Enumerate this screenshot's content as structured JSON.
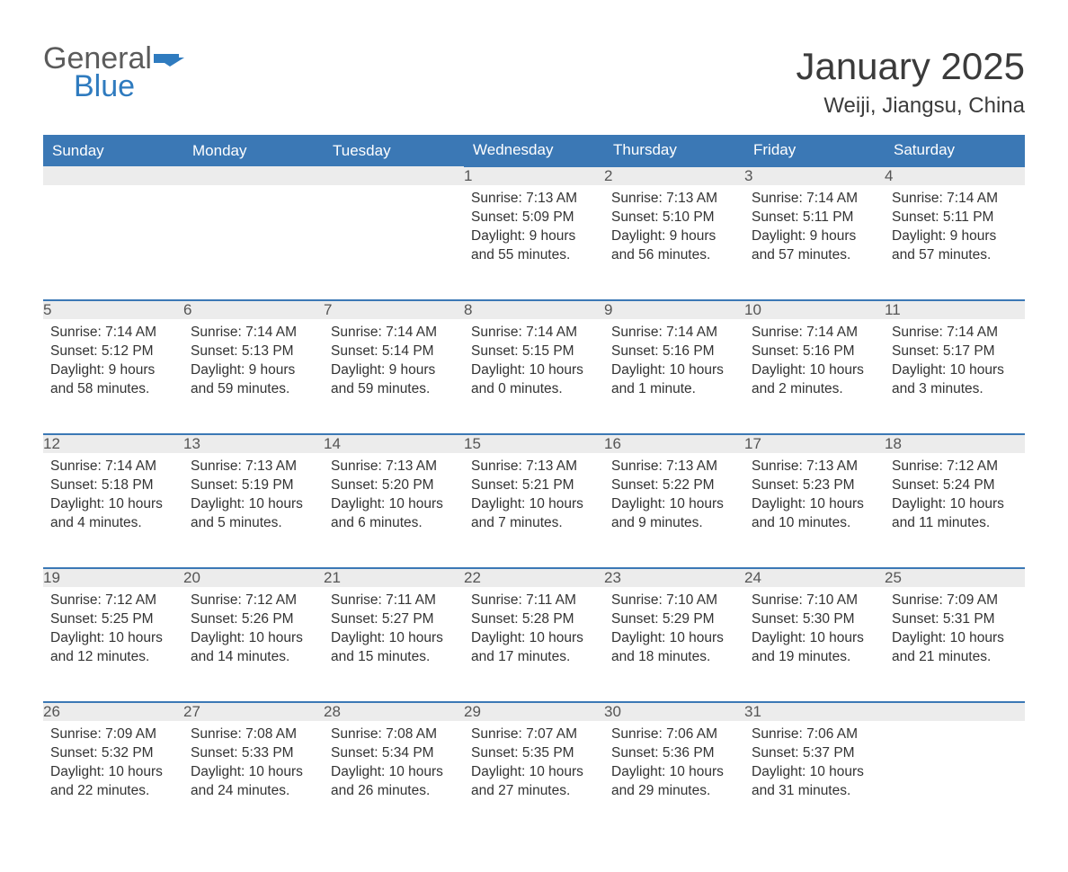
{
  "brand": {
    "line1": "General",
    "line2": "Blue",
    "color_general": "#5b5b5b",
    "color_blue": "#2f7bbf",
    "shape_color": "#2f7bbf"
  },
  "title": "January 2025",
  "location": "Weiji, Jiangsu, China",
  "colors": {
    "header_bg": "#3b78b5",
    "header_text": "#ffffff",
    "daynum_bg": "#ececec",
    "daynum_border": "#3b78b5",
    "body_text": "#333333",
    "page_bg": "#ffffff"
  },
  "typography": {
    "month_title_fontsize": 42,
    "location_fontsize": 24,
    "header_fontsize": 17,
    "daynum_fontsize": 17,
    "body_fontsize": 15.5
  },
  "weekdays": [
    "Sunday",
    "Monday",
    "Tuesday",
    "Wednesday",
    "Thursday",
    "Friday",
    "Saturday"
  ],
  "weeks": [
    [
      null,
      null,
      null,
      {
        "n": "1",
        "sr": "7:13 AM",
        "ss": "5:09 PM",
        "dl": "9 hours and 55 minutes."
      },
      {
        "n": "2",
        "sr": "7:13 AM",
        "ss": "5:10 PM",
        "dl": "9 hours and 56 minutes."
      },
      {
        "n": "3",
        "sr": "7:14 AM",
        "ss": "5:11 PM",
        "dl": "9 hours and 57 minutes."
      },
      {
        "n": "4",
        "sr": "7:14 AM",
        "ss": "5:11 PM",
        "dl": "9 hours and 57 minutes."
      }
    ],
    [
      {
        "n": "5",
        "sr": "7:14 AM",
        "ss": "5:12 PM",
        "dl": "9 hours and 58 minutes."
      },
      {
        "n": "6",
        "sr": "7:14 AM",
        "ss": "5:13 PM",
        "dl": "9 hours and 59 minutes."
      },
      {
        "n": "7",
        "sr": "7:14 AM",
        "ss": "5:14 PM",
        "dl": "9 hours and 59 minutes."
      },
      {
        "n": "8",
        "sr": "7:14 AM",
        "ss": "5:15 PM",
        "dl": "10 hours and 0 minutes."
      },
      {
        "n": "9",
        "sr": "7:14 AM",
        "ss": "5:16 PM",
        "dl": "10 hours and 1 minute."
      },
      {
        "n": "10",
        "sr": "7:14 AM",
        "ss": "5:16 PM",
        "dl": "10 hours and 2 minutes."
      },
      {
        "n": "11",
        "sr": "7:14 AM",
        "ss": "5:17 PM",
        "dl": "10 hours and 3 minutes."
      }
    ],
    [
      {
        "n": "12",
        "sr": "7:14 AM",
        "ss": "5:18 PM",
        "dl": "10 hours and 4 minutes."
      },
      {
        "n": "13",
        "sr": "7:13 AM",
        "ss": "5:19 PM",
        "dl": "10 hours and 5 minutes."
      },
      {
        "n": "14",
        "sr": "7:13 AM",
        "ss": "5:20 PM",
        "dl": "10 hours and 6 minutes."
      },
      {
        "n": "15",
        "sr": "7:13 AM",
        "ss": "5:21 PM",
        "dl": "10 hours and 7 minutes."
      },
      {
        "n": "16",
        "sr": "7:13 AM",
        "ss": "5:22 PM",
        "dl": "10 hours and 9 minutes."
      },
      {
        "n": "17",
        "sr": "7:13 AM",
        "ss": "5:23 PM",
        "dl": "10 hours and 10 minutes."
      },
      {
        "n": "18",
        "sr": "7:12 AM",
        "ss": "5:24 PM",
        "dl": "10 hours and 11 minutes."
      }
    ],
    [
      {
        "n": "19",
        "sr": "7:12 AM",
        "ss": "5:25 PM",
        "dl": "10 hours and 12 minutes."
      },
      {
        "n": "20",
        "sr": "7:12 AM",
        "ss": "5:26 PM",
        "dl": "10 hours and 14 minutes."
      },
      {
        "n": "21",
        "sr": "7:11 AM",
        "ss": "5:27 PM",
        "dl": "10 hours and 15 minutes."
      },
      {
        "n": "22",
        "sr": "7:11 AM",
        "ss": "5:28 PM",
        "dl": "10 hours and 17 minutes."
      },
      {
        "n": "23",
        "sr": "7:10 AM",
        "ss": "5:29 PM",
        "dl": "10 hours and 18 minutes."
      },
      {
        "n": "24",
        "sr": "7:10 AM",
        "ss": "5:30 PM",
        "dl": "10 hours and 19 minutes."
      },
      {
        "n": "25",
        "sr": "7:09 AM",
        "ss": "5:31 PM",
        "dl": "10 hours and 21 minutes."
      }
    ],
    [
      {
        "n": "26",
        "sr": "7:09 AM",
        "ss": "5:32 PM",
        "dl": "10 hours and 22 minutes."
      },
      {
        "n": "27",
        "sr": "7:08 AM",
        "ss": "5:33 PM",
        "dl": "10 hours and 24 minutes."
      },
      {
        "n": "28",
        "sr": "7:08 AM",
        "ss": "5:34 PM",
        "dl": "10 hours and 26 minutes."
      },
      {
        "n": "29",
        "sr": "7:07 AM",
        "ss": "5:35 PM",
        "dl": "10 hours and 27 minutes."
      },
      {
        "n": "30",
        "sr": "7:06 AM",
        "ss": "5:36 PM",
        "dl": "10 hours and 29 minutes."
      },
      {
        "n": "31",
        "sr": "7:06 AM",
        "ss": "5:37 PM",
        "dl": "10 hours and 31 minutes."
      },
      null
    ]
  ],
  "labels": {
    "sunrise": "Sunrise: ",
    "sunset": "Sunset: ",
    "daylight": "Daylight: "
  }
}
